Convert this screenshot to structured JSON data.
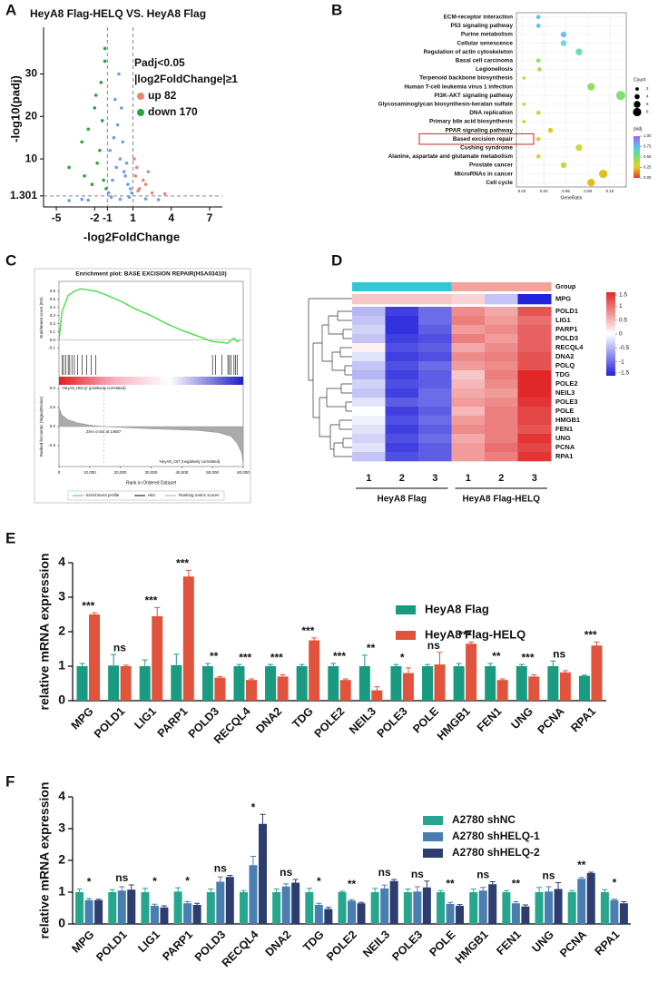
{
  "chart_data": [
    {
      "panel": "A",
      "type": "scatter",
      "title": "HeyA8 Flag-HELQ VS. HeyA8 Flag",
      "x_label": "-log2FoldChange",
      "y_label": "-log10(padj)",
      "xlim": [
        -6,
        8
      ],
      "ylim": [
        -1.3,
        41
      ],
      "xticks": [
        -5,
        -2,
        -1,
        1,
        4,
        7
      ],
      "yticks": [
        1.301,
        10,
        20,
        30
      ],
      "thresholds": {
        "x": [
          -1,
          1
        ],
        "y": 1.301
      },
      "annotations": [
        "Padj<0.05",
        "|log2FoldChange|≥1"
      ],
      "series": [
        {
          "color": "#6f9fe6",
          "x": [
            -0.9,
            -0.6,
            -0.3,
            0,
            0.3,
            0.6,
            0.9,
            -0.8,
            -0.5,
            -0.2,
            0.2,
            0.5,
            0.8,
            -0.4,
            0.1,
            0.4,
            -0.7,
            0.7,
            -0.1,
            0,
            -3,
            -2.5,
            3,
            -4,
            2
          ],
          "values": [
            2,
            5,
            8,
            10,
            7,
            4,
            2,
            12,
            15,
            18,
            14,
            9,
            3,
            24,
            22,
            6,
            1,
            1,
            30,
            0.5,
            0.5,
            0.3,
            0.4,
            0.2,
            0.6
          ]
        },
        {
          "name": "up 82",
          "color": "#ec8470",
          "x": [
            1.2,
            1.5,
            2,
            1.3,
            2.5,
            1.8,
            1.1,
            3.5,
            1.4,
            2.2
          ],
          "values": [
            6,
            3,
            4,
            8,
            2,
            5,
            10,
            1.8,
            2.5,
            7
          ]
        },
        {
          "name": "down 170",
          "color": "#2aa43c",
          "x": [
            -1.2,
            -1.5,
            -2,
            -2.5,
            -3,
            -1.8,
            -1.3,
            -2.2,
            -1.1,
            -4,
            -1.6,
            -2.8,
            -1.4,
            -1.9,
            -1.2
          ],
          "values": [
            36,
            28,
            22,
            17,
            14,
            9,
            5,
            4,
            3,
            8,
            12,
            6,
            19,
            25,
            33
          ]
        }
      ]
    },
    {
      "panel": "B",
      "type": "dot",
      "x_label": "GeneRatio",
      "categories": [
        "ECM-receptor interaction",
        "P53 signaling pathway",
        "Purine metabolism",
        "Cellular senescence",
        "Regulation of actin cytoskeleton",
        "Basal cell carcinoma",
        "Legionellosis",
        "Terpenoid backbone biosynthesis",
        "Human T-cell leukemia virus 1 infection",
        "PI3K-AKT signaling pathway",
        "Glycosaminoglycan  biosynthesis-keratan sulfate",
        "DNA replication",
        "Primary bile acid biosynthesis",
        "PPAR signaling pathway",
        "Based excision repair",
        "Cushing syndrome",
        "Alanine, aspartate and glutamate metabolism",
        "Prostate cancer",
        "MicroRNAs in cancer",
        "Cell cycle"
      ],
      "values": [
        0.035,
        0.035,
        0.058,
        0.058,
        0.072,
        0.035,
        0.036,
        0.022,
        0.083,
        0.11,
        0.022,
        0.035,
        0.022,
        0.046,
        0.035,
        0.072,
        0.035,
        0.058,
        0.094,
        0.083
      ],
      "sizes": [
        3,
        3,
        5,
        5,
        6,
        3,
        3,
        2,
        7,
        9,
        2,
        3,
        2,
        4,
        3,
        6,
        3,
        5,
        8,
        7
      ],
      "colors": [
        "#5bc8e8",
        "#5bc8e8",
        "#6ec1f0",
        "#6ed7e0",
        "#66e0b0",
        "#8fe070",
        "#a0e060",
        "#c0e050",
        "#90e060",
        "#80e070",
        "#c8d840",
        "#c8d840",
        "#d0d040",
        "#d8d030",
        "#e0c830",
        "#d0d838",
        "#d8d030",
        "#c8d840",
        "#e0c020",
        "#e8b820"
      ],
      "xlim": [
        0.015,
        0.115
      ],
      "xticks": [
        0.02,
        0.04,
        0.06,
        0.08,
        {
          "value": 0.1,
          "label": "0.10"
        }
      ],
      "size_legend": {
        "title": "Count",
        "values": [
          2,
          4,
          6,
          8
        ]
      },
      "color_legend": {
        "title": "padj",
        "colors": [
          "#b05ce8",
          "#4cc8f0",
          "#7ee070",
          "#e8d020",
          "#e83030"
        ],
        "ticks": [
          {
            "value": 1,
            "label": "1.00"
          },
          0.75,
          {
            "value": 0.5,
            "label": "0.50"
          },
          0.25,
          {
            "value": 0,
            "label": "0.00"
          }
        ]
      }
    },
    {
      "panel": "C",
      "type": "line",
      "title": "Enrichment plot: BASE EXCISION REPAIR(HSA03410)",
      "x_label": "Rank in Ordered Dataset",
      "y_label": "Enrichment score (ES)",
      "y2_label": "Ranked list metric (Signal2Noise)",
      "annotations": [
        "'HeyA8_HELQ' (positively correlated)",
        "Zero cross at 14687",
        "'HeyA8_Ctrl' (negatively correlated)"
      ],
      "xlim": [
        0,
        60000
      ],
      "xticks": [
        0,
        {
          "value": 10000,
          "label": "10,000"
        },
        {
          "value": 20000,
          "label": "20,000"
        },
        {
          "value": 30000,
          "label": "30,000"
        },
        {
          "value": 40000,
          "label": "40,000"
        },
        {
          "value": 50000,
          "label": "50,000"
        },
        {
          "value": 60000,
          "label": "60,000"
        }
      ],
      "ylim": [
        -0.15,
        0.7
      ],
      "yticks": [
        0.6,
        0.5,
        0.4,
        0.3,
        0.2,
        0.1,
        {
          "value": 0,
          "label": "0.0"
        },
        -0.1
      ],
      "y2lim": [
        -5,
        5
      ],
      "y2ticks": [
        {
          "value": 5,
          "label": "5.0"
        },
        2.5,
        {
          "value": 0,
          "label": "0.0"
        },
        -2.5
      ],
      "series": [
        {
          "name": "Enrichment profile",
          "color": "#33e033",
          "x": [
            0,
            1000,
            3000,
            5000,
            7000,
            9000,
            12000,
            15000,
            20000,
            25000,
            30000,
            35000,
            40000,
            45000,
            50000,
            53000,
            55000,
            56000,
            57000,
            58000,
            59000
          ],
          "values": [
            0,
            0.35,
            0.55,
            0.6,
            0.63,
            0.62,
            0.6,
            0.56,
            0.48,
            0.38,
            0.3,
            0.2,
            0.12,
            0.05,
            -0.02,
            -0.03,
            -0.04,
            0,
            0.02,
            -0.02,
            0
          ]
        },
        {
          "name": "Hits",
          "color": "#000000",
          "x": [
            1000,
            1500,
            2200,
            3000,
            3500,
            4200,
            5000,
            6000,
            7500,
            9000,
            10500,
            12000,
            50000,
            51000,
            53000,
            55000,
            55500,
            56000,
            57000,
            57500,
            58000
          ]
        },
        {
          "name": "Ranking metric scores",
          "color": "#aaaaaa",
          "axis": "y2",
          "x": [
            0,
            1000,
            3000,
            6000,
            10000,
            14687,
            30000,
            45000,
            52000,
            56000,
            58000,
            59500,
            60000
          ],
          "values": [
            2.5,
            1.5,
            0.9,
            0.5,
            0.2,
            0,
            -0.3,
            -0.5,
            -0.8,
            -1.3,
            -2.2,
            -3.5,
            -5
          ]
        }
      ]
    },
    {
      "panel": "D",
      "type": "heatmap",
      "group_label": "Group",
      "rows": [
        "MPG",
        "POLD1",
        "LIG1",
        "PARP1",
        "POLD3",
        "RECQL4",
        "DNA2",
        "POLQ",
        "TDG",
        "POLE2",
        "NEIL3",
        "POLE3",
        "POLE",
        "HMGB1",
        "FEN1",
        "UNG",
        "PCNA",
        "RPA1"
      ],
      "column_labels": [
        "1",
        "2",
        "3",
        "1",
        "2",
        "3"
      ],
      "groups": [
        {
          "name": "HeyA8 Flag",
          "color": "#33c8d8",
          "columns": [
            0,
            1,
            2
          ]
        },
        {
          "name": "HeyA8 Flag-HELQ",
          "color": "#f4a39c",
          "columns": [
            3,
            4,
            5
          ]
        }
      ],
      "zlim": [
        -1.5,
        1.5
      ],
      "colors": [
        "#2323dc",
        "#ffffff",
        "#e02828"
      ],
      "colorbar_ticks": [
        1.5,
        1,
        0.5,
        0,
        -0.5,
        -1,
        -1.5
      ],
      "values": [
        [
          0.4,
          0.4,
          0.4,
          0.3,
          -0.4,
          -1.5
        ],
        [
          -0.5,
          -1.3,
          -1,
          0.8,
          0.6,
          1.2
        ],
        [
          -0.4,
          -1.4,
          -1,
          0.9,
          0.7,
          1
        ],
        [
          -0.3,
          -1.4,
          -1.1,
          0.7,
          0.8,
          1.1
        ],
        [
          -0.4,
          -1.3,
          -1.2,
          0.9,
          0.7,
          1.1
        ],
        [
          0.1,
          -1.2,
          -1.1,
          0.6,
          0.8,
          1.1
        ],
        [
          -0.2,
          -1.3,
          -1.2,
          0.8,
          0.9,
          1.2
        ],
        [
          -0.4,
          -1.2,
          -1,
          0.7,
          0.8,
          1.2
        ],
        [
          -0.5,
          -1.3,
          -1.1,
          0.4,
          0.9,
          1.5
        ],
        [
          -0.3,
          -1.2,
          -1.1,
          0.5,
          0.8,
          1.5
        ],
        [
          -0.4,
          -1.3,
          -1,
          0.6,
          0.7,
          1.5
        ],
        [
          -0.2,
          -1.1,
          -1,
          0.7,
          0.8,
          1.4
        ],
        [
          0,
          -1.3,
          -1.1,
          0.5,
          0.9,
          1.3
        ],
        [
          -0.1,
          -1.2,
          -1,
          0.7,
          0.9,
          1.3
        ],
        [
          -0.2,
          -1.3,
          -1.1,
          0.8,
          0.9,
          1.2
        ],
        [
          -0.3,
          -1.2,
          -1,
          0.6,
          0.9,
          1.4
        ],
        [
          -0.2,
          -1.3,
          -1.1,
          0.7,
          1,
          1.3
        ],
        [
          -0.4,
          -1.2,
          -1.1,
          0.7,
          0.9,
          1.4
        ]
      ]
    },
    {
      "panel": "E",
      "type": "bar",
      "y_label": "relative mRNA expression",
      "categories": [
        "MPG",
        "POLD1",
        "LIG1",
        "PARP1",
        "POLD3",
        "RECQL4",
        "DNA2",
        "TDG",
        "POLE2",
        "NEIL3",
        "POLE3",
        "POLE",
        "HMGB1",
        "FEN1",
        "UNG",
        "PCNA",
        "RPA1"
      ],
      "ylim": [
        0,
        4
      ],
      "yticks": [
        0,
        1,
        2,
        3,
        4
      ],
      "annotations": [
        "***",
        "ns",
        "***",
        "***",
        "**",
        "***",
        "***",
        "***",
        "***",
        "**",
        "*",
        "ns",
        "***",
        "**",
        "***",
        "ns",
        "***"
      ],
      "series": [
        {
          "name": "HeyA8 Flag",
          "color": "#1a9a80",
          "values": [
            1,
            1.02,
            1,
            1.03,
            1,
            1,
            1,
            1,
            1,
            1,
            1,
            1,
            1,
            1,
            1,
            1,
            0.72
          ],
          "errors": [
            0.08,
            0.32,
            0.18,
            0.32,
            0.08,
            0.05,
            0.05,
            0.05,
            0.08,
            0.32,
            0.05,
            0.05,
            0.08,
            0.08,
            0.05,
            0.15,
            0.02
          ]
        },
        {
          "name": "HeyA8 Flag-HELQ",
          "color": "#e0533c",
          "values": [
            2.5,
            1,
            2.45,
            3.6,
            0.67,
            0.6,
            0.7,
            1.75,
            0.6,
            0.3,
            0.8,
            1.05,
            1.65,
            0.6,
            0.7,
            0.82,
            1.6
          ],
          "errors": [
            0.05,
            0.03,
            0.25,
            0.18,
            0.03,
            0.03,
            0.05,
            0.07,
            0.03,
            0.1,
            0.15,
            0.35,
            0.05,
            0.03,
            0.05,
            0.05,
            0.1
          ]
        }
      ]
    },
    {
      "panel": "F",
      "type": "bar",
      "y_label": "relative mRNA expression",
      "categories": [
        "MPG",
        "POLD1",
        "LIG1",
        "PARP1",
        "POLD3",
        "RECQL4",
        "DNA2",
        "TDG",
        "POLE2",
        "NEIL3",
        "POLE3",
        "POLE",
        "HMGB1",
        "FEN1",
        "UNG",
        "PCNA",
        "RPA1"
      ],
      "ylim": [
        0,
        4
      ],
      "yticks": [
        0,
        1,
        2,
        3,
        4
      ],
      "annotations": [
        "*",
        "ns",
        "*",
        "*",
        "ns",
        "*",
        "ns",
        "*",
        "**",
        "ns",
        "ns",
        "**",
        "ns",
        "**",
        "ns",
        "**",
        "*"
      ],
      "series": [
        {
          "name": "A2780 shNC",
          "color": "#26a68d",
          "values": [
            1,
            1,
            1,
            1.02,
            1,
            1,
            1,
            1,
            1,
            1,
            1,
            1,
            1,
            1,
            1,
            1,
            1
          ],
          "errors": [
            0.1,
            0.08,
            0.12,
            0.12,
            0.1,
            0.05,
            0.1,
            0.12,
            0.03,
            0.12,
            0.1,
            0.05,
            0.1,
            0.05,
            0.15,
            0.05,
            0.08
          ]
        },
        {
          "name": "A2780 shHELQ-1",
          "color": "#4a7db0",
          "values": [
            0.75,
            1.05,
            0.57,
            0.65,
            1.33,
            1.85,
            1.18,
            0.6,
            0.73,
            1.12,
            1.02,
            0.63,
            1.05,
            0.65,
            1.02,
            1.42,
            0.75
          ],
          "errors": [
            0.05,
            0.12,
            0.05,
            0.05,
            0.15,
            0.28,
            0.08,
            0.05,
            0.03,
            0.1,
            0.15,
            0.05,
            0.1,
            0.05,
            0.15,
            0.04,
            0.03
          ]
        },
        {
          "name": "A2780 shHELQ-2",
          "color": "#2d3d6e",
          "values": [
            0.75,
            1.08,
            0.52,
            0.6,
            1.48,
            3.15,
            1.3,
            0.47,
            0.65,
            1.35,
            1.15,
            0.57,
            1.25,
            0.55,
            1.1,
            1.6,
            0.65
          ],
          "errors": [
            0.03,
            0.15,
            0.05,
            0.05,
            0.05,
            0.3,
            0.1,
            0.05,
            0.03,
            0.05,
            0.2,
            0.04,
            0.08,
            0.05,
            0.2,
            0.03,
            0.05
          ]
        }
      ]
    }
  ]
}
